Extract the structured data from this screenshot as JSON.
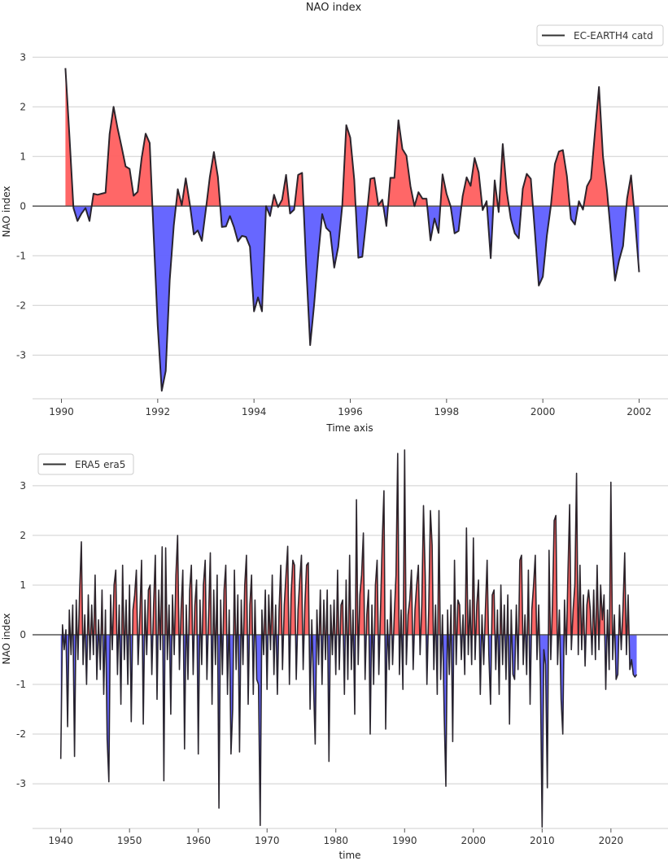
{
  "figure": {
    "title": "NAO index"
  },
  "colors": {
    "positive_fill": "#ff5f5f",
    "negative_fill": "#5f5fff",
    "line": "#1c1820",
    "zero_line": "#555555",
    "grid": "#cfcfcf"
  },
  "chart_data": [
    {
      "type": "area",
      "title": "NAO index",
      "xlabel": "Time axis",
      "ylabel": "NAO index",
      "legend": {
        "label": "EC-EARTH4 catd",
        "placement": "top-right"
      },
      "series_name": "EC-EARTH4 catd",
      "start": "1990-02",
      "step_months": 1,
      "xlim": [
        1989.4,
        2002.6
      ],
      "ylim": [
        -3.88,
        3.66
      ],
      "xticks": [
        1990,
        1992,
        1994,
        1996,
        1998,
        2000,
        2002
      ],
      "yticks": [
        -3,
        -2,
        -1,
        0,
        1,
        2,
        3
      ],
      "grid": "horizontal",
      "fill": "red above zero, blue below zero",
      "values": [
        2.78,
        1.4,
        -0.04,
        -0.3,
        -0.15,
        -0.04,
        -0.3,
        0.25,
        0.23,
        0.25,
        0.27,
        1.45,
        2.0,
        1.57,
        1.19,
        0.8,
        0.75,
        0.21,
        0.29,
        0.97,
        1.46,
        1.27,
        -0.6,
        -2.4,
        -3.72,
        -3.32,
        -1.49,
        -0.39,
        0.34,
        0.02,
        0.56,
        0.04,
        -0.57,
        -0.49,
        -0.7,
        -0.07,
        0.59,
        1.09,
        0.59,
        -0.42,
        -0.41,
        -0.2,
        -0.42,
        -0.71,
        -0.6,
        -0.62,
        -0.82,
        -2.12,
        -1.84,
        -2.12,
        0.0,
        -0.2,
        0.23,
        -0.02,
        0.13,
        0.63,
        -0.15,
        -0.07,
        0.63,
        0.67,
        -1.2,
        -2.8,
        -1.98,
        -1.0,
        -0.16,
        -0.44,
        -0.52,
        -1.24,
        -0.82,
        0.0,
        1.63,
        1.38,
        0.53,
        -1.04,
        -1.02,
        -0.28,
        0.55,
        0.57,
        0.02,
        0.13,
        -0.4,
        0.57,
        0.57,
        1.73,
        1.15,
        1.02,
        0.4,
        0.0,
        0.28,
        0.15,
        0.15,
        -0.69,
        -0.25,
        -0.54,
        0.64,
        0.25,
        0.0,
        -0.55,
        -0.5,
        0.2,
        0.58,
        0.41,
        0.97,
        0.68,
        -0.08,
        0.1,
        -1.05,
        0.52,
        -0.12,
        1.25,
        0.3,
        -0.25,
        -0.55,
        -0.65,
        0.35,
        0.65,
        0.55,
        -0.5,
        -1.6,
        -1.42,
        -0.6,
        0.0,
        0.85,
        1.1,
        1.13,
        0.6,
        -0.26,
        -0.37,
        0.1,
        -0.07,
        0.4,
        0.55,
        1.5,
        2.4,
        1.0,
        0.3,
        -0.6,
        -1.5,
        -1.1,
        -0.8,
        0.15,
        0.62,
        -0.3,
        -1.33
      ]
    },
    {
      "type": "area",
      "xlabel": "time",
      "ylabel": "NAO index",
      "legend": {
        "label": "ERA5 era5",
        "placement": "top-left"
      },
      "series_name": "ERA5 era5",
      "start": "1940-01",
      "step_months": 3,
      "xlim": [
        1935.9,
        2028.3
      ],
      "ylim": [
        -3.9,
        3.85
      ],
      "xticks": [
        1940,
        1950,
        1960,
        1970,
        1980,
        1990,
        2000,
        2010,
        2020
      ],
      "yticks": [
        -3,
        -2,
        -1,
        0,
        1,
        2,
        3
      ],
      "grid": "horizontal",
      "fill": "red above zero, blue below zero",
      "values": [
        -2.5,
        0.2,
        -0.3,
        0.1,
        -1.85,
        0.5,
        -0.4,
        0.6,
        -2.45,
        0.7,
        -0.5,
        0.9,
        1.87,
        -0.6,
        0.4,
        -1.0,
        0.8,
        -0.5,
        0.6,
        -0.4,
        1.2,
        -0.9,
        0.3,
        -0.7,
        0.9,
        -1.2,
        0.5,
        -2.1,
        -2.96,
        0.8,
        -0.3,
        1.0,
        1.3,
        -0.8,
        0.6,
        -1.4,
        1.4,
        -0.5,
        0.7,
        -1.0,
        1.0,
        -1.75,
        0.5,
        0.8,
        1.3,
        -0.6,
        0.4,
        1.5,
        -1.8,
        0.7,
        -0.4,
        0.9,
        1.0,
        -0.8,
        0.6,
        1.6,
        -1.3,
        0.9,
        -0.3,
        1.77,
        -2.94,
        1.75,
        -0.5,
        0.6,
        -1.6,
        0.8,
        -0.4,
        1.2,
        2.0,
        -0.7,
        0.5,
        1.3,
        -2.3,
        0.6,
        -0.9,
        0.9,
        1.4,
        -0.8,
        0.6,
        1.1,
        -2.4,
        0.7,
        -0.6,
        1.0,
        1.5,
        -0.9,
        0.4,
        1.65,
        -1.4,
        0.9,
        -0.6,
        1.2,
        -3.49,
        0.7,
        -0.8,
        0.9,
        1.4,
        -1.2,
        0.5,
        -2.4,
        -1.5,
        1.3,
        -0.7,
        0.8,
        -2.36,
        0.7,
        -0.6,
        1.0,
        1.6,
        -1.4,
        0.6,
        1.2,
        -1.2,
        0.7,
        -0.9,
        -1.0,
        -3.84,
        0.5,
        -0.4,
        0.9,
        -1.1,
        0.8,
        -0.3,
        1.2,
        -0.8,
        0.6,
        -1.2,
        0.5,
        1.4,
        -0.7,
        0.6,
        1.2,
        1.78,
        -1.0,
        0.8,
        1.5,
        1.4,
        -0.9,
        0.5,
        1.1,
        1.6,
        -0.7,
        0.6,
        1.4,
        1.45,
        -1.5,
        0.3,
        -1.0,
        -2.2,
        0.5,
        -0.6,
        0.9,
        -1.0,
        0.7,
        -0.5,
        0.9,
        -2.55,
        0.6,
        -0.4,
        0.7,
        -0.8,
        1.3,
        -0.7,
        0.6,
        0.7,
        -1.2,
        1.1,
        -0.9,
        1.6,
        -0.7,
        0.5,
        -1.6,
        2.72,
        -0.6,
        0.8,
        1.2,
        2.05,
        -0.9,
        0.4,
        0.9,
        -2.0,
        0.6,
        -1.0,
        1.0,
        1.5,
        -0.8,
        0.5,
        1.9,
        2.9,
        -1.9,
        0.3,
        -0.7,
        0.9,
        -0.6,
        0.4,
        1.2,
        3.65,
        -0.8,
        0.5,
        -1.1,
        3.72,
        -0.6,
        0.4,
        0.7,
        1.3,
        -0.7,
        0.5,
        1.0,
        1.4,
        -0.4,
        0.6,
        2.6,
        1.2,
        -1.0,
        0.5,
        2.5,
        1.8,
        -0.7,
        0.6,
        -1.2,
        2.5,
        -0.9,
        0.4,
        -1.6,
        -3.05,
        0.5,
        -0.8,
        0.6,
        -2.15,
        1.5,
        -0.6,
        0.7,
        0.6,
        -0.5,
        0.4,
        -0.8,
        2.15,
        -0.4,
        0.7,
        -0.6,
        1.95,
        -0.5,
        0.6,
        1.1,
        -1.2,
        0.4,
        -0.6,
        0.5,
        1.5,
        -0.4,
        -1.4,
        0.8,
        0.9,
        -0.7,
        0.5,
        -1.2,
        1.0,
        -0.6,
        0.6,
        -0.9,
        0.8,
        -1.8,
        0.5,
        -0.8,
        -0.9,
        0.6,
        -0.7,
        1.5,
        1.6,
        -0.6,
        0.4,
        -0.8,
        1.3,
        -1.4,
        0.5,
        1.0,
        1.6,
        -0.5,
        0.6,
        -0.9,
        -3.87,
        -0.3,
        -0.6,
        -3.08,
        1.7,
        -0.5,
        0.6,
        2.3,
        2.4,
        -0.6,
        0.5,
        -1.3,
        -2.0,
        0.7,
        -0.4,
        1.2,
        2.62,
        -0.3,
        0.5,
        1.0,
        3.25,
        -0.4,
        1.4,
        -0.3,
        0.8,
        -0.63,
        0.6,
        0.9,
        0.5,
        -0.4,
        0.9,
        -0.5,
        1.4,
        -0.3,
        1.0,
        0.3,
        0.8,
        -1.1,
        0.5,
        -0.7,
        3.07,
        -0.5,
        0.4,
        -0.9,
        -0.8,
        0.6,
        -0.3,
        0.5,
        1.65,
        -0.4,
        0.8,
        -0.7,
        -0.5,
        -0.8,
        -0.85,
        -0.8
      ]
    }
  ]
}
